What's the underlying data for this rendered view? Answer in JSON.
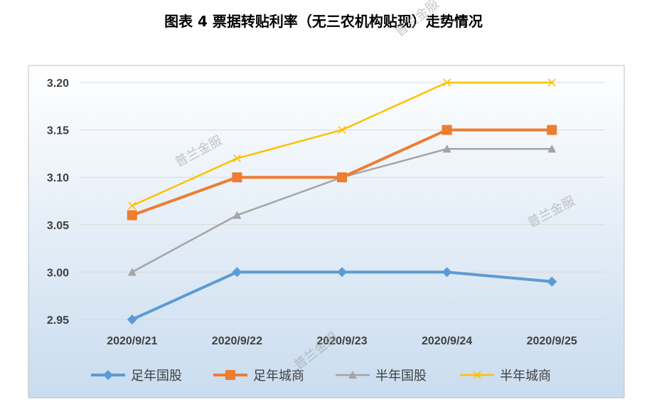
{
  "chart_data": {
    "type": "line",
    "title": "图表 4  票据转贴利率（无三农机构贴现）走势情况",
    "categories": [
      "2020/9/21",
      "2020/9/22",
      "2020/9/23",
      "2020/9/24",
      "2020/9/25"
    ],
    "ylim": [
      2.95,
      3.2
    ],
    "yticks": [
      "2.95",
      "3.00",
      "3.05",
      "3.10",
      "3.15",
      "3.20"
    ],
    "grid": true,
    "legend_position": "bottom",
    "series": [
      {
        "name": "足年国股",
        "values": [
          2.95,
          3.0,
          3.0,
          3.0,
          2.99
        ],
        "color": "#5b9bd5",
        "marker": "diamond"
      },
      {
        "name": "足年城商",
        "values": [
          3.06,
          3.1,
          3.1,
          3.15,
          3.15
        ],
        "color": "#ed7d31",
        "marker": "square"
      },
      {
        "name": "半年国股",
        "values": [
          3.0,
          3.06,
          3.1,
          3.13,
          3.13
        ],
        "color": "#a5a5a5",
        "marker": "triangle"
      },
      {
        "name": "半年城商",
        "values": [
          3.07,
          3.12,
          3.15,
          3.2,
          3.2
        ],
        "color": "#ffc000",
        "marker": "x"
      }
    ]
  },
  "watermark": "普兰金服"
}
